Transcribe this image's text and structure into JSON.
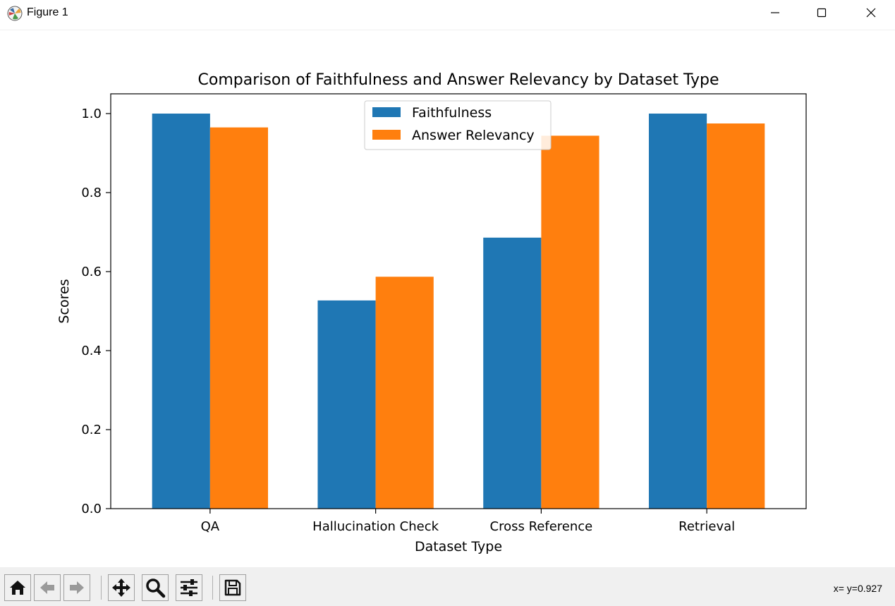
{
  "window": {
    "title": "Figure 1",
    "app_icon": "matplotlib-logo-icon",
    "controls": [
      "minimize-icon",
      "maximize-icon",
      "close-icon"
    ]
  },
  "chart_data": {
    "type": "bar",
    "title": "Comparison of Faithfulness and Answer Relevancy by Dataset Type",
    "xlabel": "Dataset Type",
    "ylabel": "Scores",
    "categories": [
      "QA",
      "Hallucination Check",
      "Cross Reference",
      "Retrieval"
    ],
    "series": [
      {
        "name": "Faithfulness",
        "color": "#1f77b4",
        "values": [
          1.0,
          0.527,
          0.686,
          1.0
        ]
      },
      {
        "name": "Answer Relevancy",
        "color": "#ff7f0e",
        "values": [
          0.965,
          0.587,
          0.944,
          0.975
        ]
      }
    ],
    "ylim": [
      0,
      1.05
    ],
    "yticks": [
      "0.0",
      "0.2",
      "0.4",
      "0.6",
      "0.8",
      "1.0"
    ],
    "legend_position": "top-center",
    "grid": false
  },
  "toolbar": {
    "buttons": [
      "home-icon",
      "back-arrow-icon",
      "forward-arrow-icon",
      "pan-icon",
      "zoom-icon",
      "configure-subplots-icon",
      "save-icon"
    ],
    "coordinates": "x= y=0.927"
  }
}
